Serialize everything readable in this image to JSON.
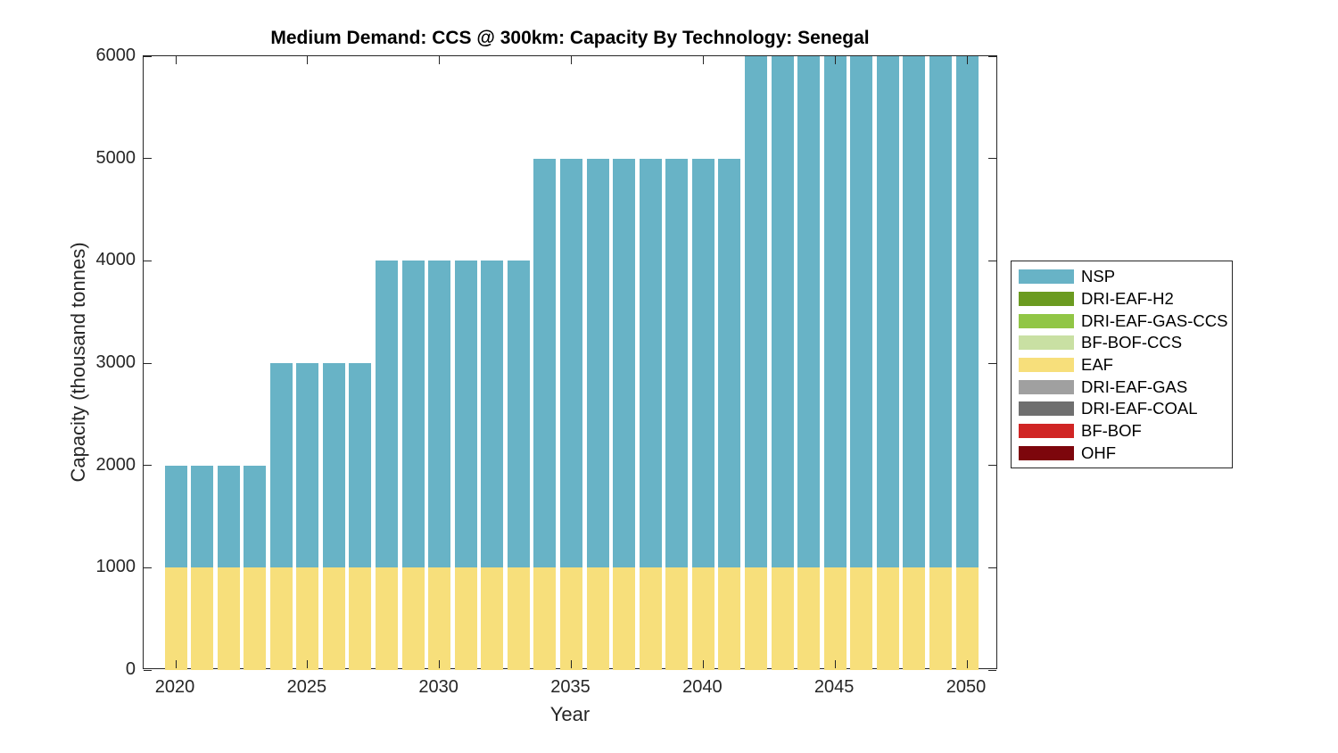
{
  "chart_data": {
    "type": "bar",
    "stacked": true,
    "title": "Medium Demand: CCS @ 300km: Capacity By Technology: Senegal",
    "xlabel": "Year",
    "ylabel": "Capacity (thousand tonnes)",
    "x": [
      2020,
      2021,
      2022,
      2023,
      2024,
      2025,
      2026,
      2027,
      2028,
      2029,
      2030,
      2031,
      2032,
      2033,
      2034,
      2035,
      2036,
      2037,
      2038,
      2039,
      2040,
      2041,
      2042,
      2043,
      2044,
      2045,
      2046,
      2047,
      2048,
      2049,
      2050
    ],
    "xticks": [
      2020,
      2025,
      2030,
      2035,
      2040,
      2045,
      2050
    ],
    "yticks": [
      0,
      1000,
      2000,
      3000,
      4000,
      5000,
      6000
    ],
    "ylim": [
      0,
      6000
    ],
    "grid": false,
    "legend_position": "right-outside",
    "series": [
      {
        "name": "EAF",
        "color": "#F7DF7B",
        "values": [
          1000,
          1000,
          1000,
          1000,
          1000,
          1000,
          1000,
          1000,
          1000,
          1000,
          1000,
          1000,
          1000,
          1000,
          1000,
          1000,
          1000,
          1000,
          1000,
          1000,
          1000,
          1000,
          1000,
          1000,
          1000,
          1000,
          1000,
          1000,
          1000,
          1000,
          1000
        ]
      },
      {
        "name": "NSP",
        "color": "#68B3C6",
        "values": [
          1000,
          1000,
          1000,
          1000,
          2000,
          2000,
          2000,
          2000,
          3000,
          3000,
          3000,
          3000,
          3000,
          3000,
          4000,
          4000,
          4000,
          4000,
          4000,
          4000,
          4000,
          4000,
          5000,
          5000,
          5000,
          5000,
          5000,
          5000,
          5000,
          5000,
          5000
        ]
      }
    ],
    "legend": [
      {
        "label": "NSP",
        "color": "#68B3C6"
      },
      {
        "label": "DRI-EAF-H2",
        "color": "#6B9B20"
      },
      {
        "label": "DRI-EAF-GAS-CCS",
        "color": "#91C646"
      },
      {
        "label": "BF-BOF-CCS",
        "color": "#C9E0A3"
      },
      {
        "label": "EAF",
        "color": "#F7DF7B"
      },
      {
        "label": "DRI-EAF-GAS",
        "color": "#A0A0A0"
      },
      {
        "label": "DRI-EAF-COAL",
        "color": "#6F6F6F"
      },
      {
        "label": "BF-BOF",
        "color": "#D02524"
      },
      {
        "label": "OHF",
        "color": "#7D060C"
      }
    ]
  }
}
